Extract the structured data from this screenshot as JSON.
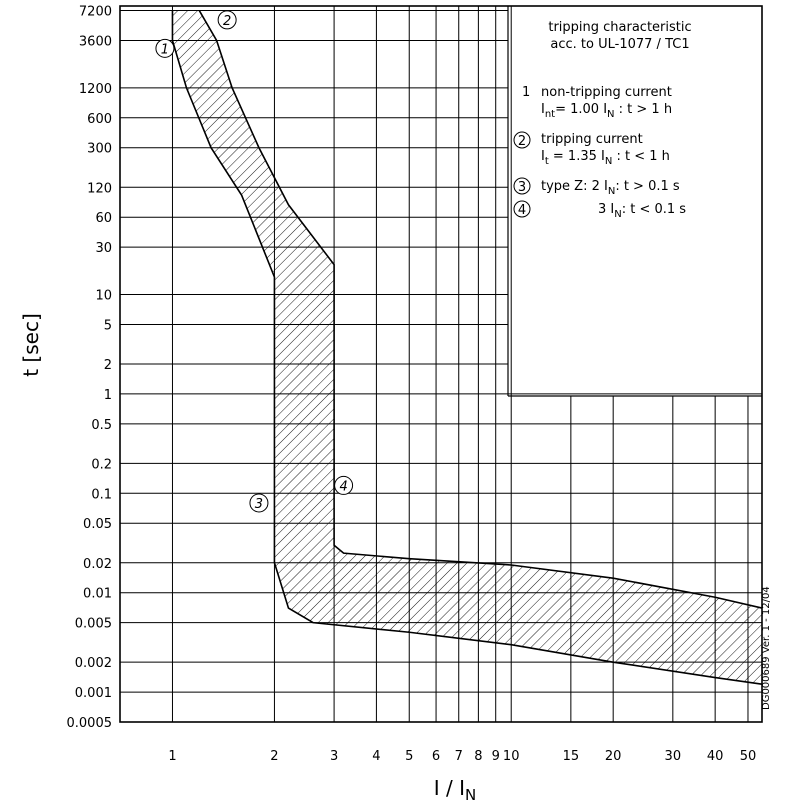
{
  "chart_data": {
    "type": "area",
    "title": "",
    "xlabel": "I / I",
    "xlabel_sub": "N",
    "ylabel": "t [sec]",
    "xscale": "log",
    "yscale": "log",
    "xlim": [
      0.7,
      55
    ],
    "ylim": [
      0.0005,
      8000
    ],
    "grid": true,
    "x_ticks": [
      1,
      2,
      3,
      4,
      5,
      6,
      7,
      8,
      9,
      10,
      15,
      20,
      30,
      40,
      50
    ],
    "x_tick_labels": [
      "1",
      "2",
      "3",
      "4",
      "5",
      "6",
      "7",
      "8",
      "9",
      "10",
      "15",
      "20",
      "30",
      "40",
      "50"
    ],
    "y_ticks": [
      7200,
      3600,
      1200,
      600,
      300,
      120,
      60,
      30,
      10,
      5,
      2,
      1,
      0.5,
      0.2,
      0.1,
      0.05,
      0.02,
      0.01,
      0.005,
      0.002,
      0.001,
      0.0005
    ],
    "y_tick_labels": [
      "7200",
      "3600",
      "1200",
      "600",
      "300",
      "120",
      "60",
      "30",
      "10",
      "5",
      "2",
      "1",
      "0.5",
      "0.2",
      "0.1",
      "0.05",
      "0.02",
      "0.01",
      "0.005",
      "0.002",
      "0.001",
      "0.0005"
    ],
    "series": [
      {
        "name": "",
        "role": "left boundary",
        "points": [
          [
            1.0,
            7200
          ],
          [
            1.0,
            3600
          ],
          [
            1.1,
            1200
          ],
          [
            1.3,
            300
          ],
          [
            1.6,
            100
          ],
          [
            2.0,
            15
          ],
          [
            2.0,
            0.02
          ],
          [
            2.2,
            0.007
          ],
          [
            2.6,
            0.005
          ],
          [
            5,
            0.004
          ],
          [
            10,
            0.003
          ],
          [
            20,
            0.002
          ],
          [
            40,
            0.0014
          ],
          [
            55,
            0.0012
          ]
        ]
      },
      {
        "name": "",
        "role": "right boundary",
        "points": [
          [
            1.2,
            7200
          ],
          [
            1.35,
            3600
          ],
          [
            1.5,
            1200
          ],
          [
            1.8,
            300
          ],
          [
            2.2,
            80
          ],
          [
            3.0,
            20
          ],
          [
            3.0,
            0.03
          ],
          [
            3.2,
            0.025
          ],
          [
            5,
            0.022
          ],
          [
            10,
            0.019
          ],
          [
            20,
            0.014
          ],
          [
            40,
            0.009
          ],
          [
            55,
            0.007
          ]
        ]
      }
    ],
    "markers": [
      {
        "id": "1",
        "x": 0.95,
        "y": 3000
      },
      {
        "id": "2",
        "x": 1.45,
        "y": 5800
      },
      {
        "id": "3",
        "x": 1.8,
        "y": 0.08
      },
      {
        "id": "4",
        "x": 3.2,
        "y": 0.12
      }
    ]
  },
  "legend": {
    "title_line1": "tripping characteristic",
    "title_line2": "acc. to UL-1077 / TC1",
    "items": [
      {
        "num": "1",
        "line1": "non-tripping current",
        "line2_pre": "I",
        "line2_sub": "nt",
        "line2_post": "= 1.00 I",
        "line2_sub2": "N",
        "line2_end": " : t > 1 h"
      },
      {
        "num": "2",
        "line1": "tripping current",
        "line2_pre": "I",
        "line2_sub": "t",
        "line2_post": " = 1.35 I",
        "line2_sub2": "N",
        "line2_end": " : t < 1 h"
      }
    ],
    "type_z": {
      "num3": "3",
      "num4": "4",
      "line1_pre": "type Z:  2 I",
      "line1_sub": "N",
      "line1_end": ": t > 0.1 s",
      "line2_pre": "3 I",
      "line2_sub": "N",
      "line2_end": ": t < 0.1 s"
    }
  },
  "doc_id": "DG000689  Ver. 1 - 12/04"
}
